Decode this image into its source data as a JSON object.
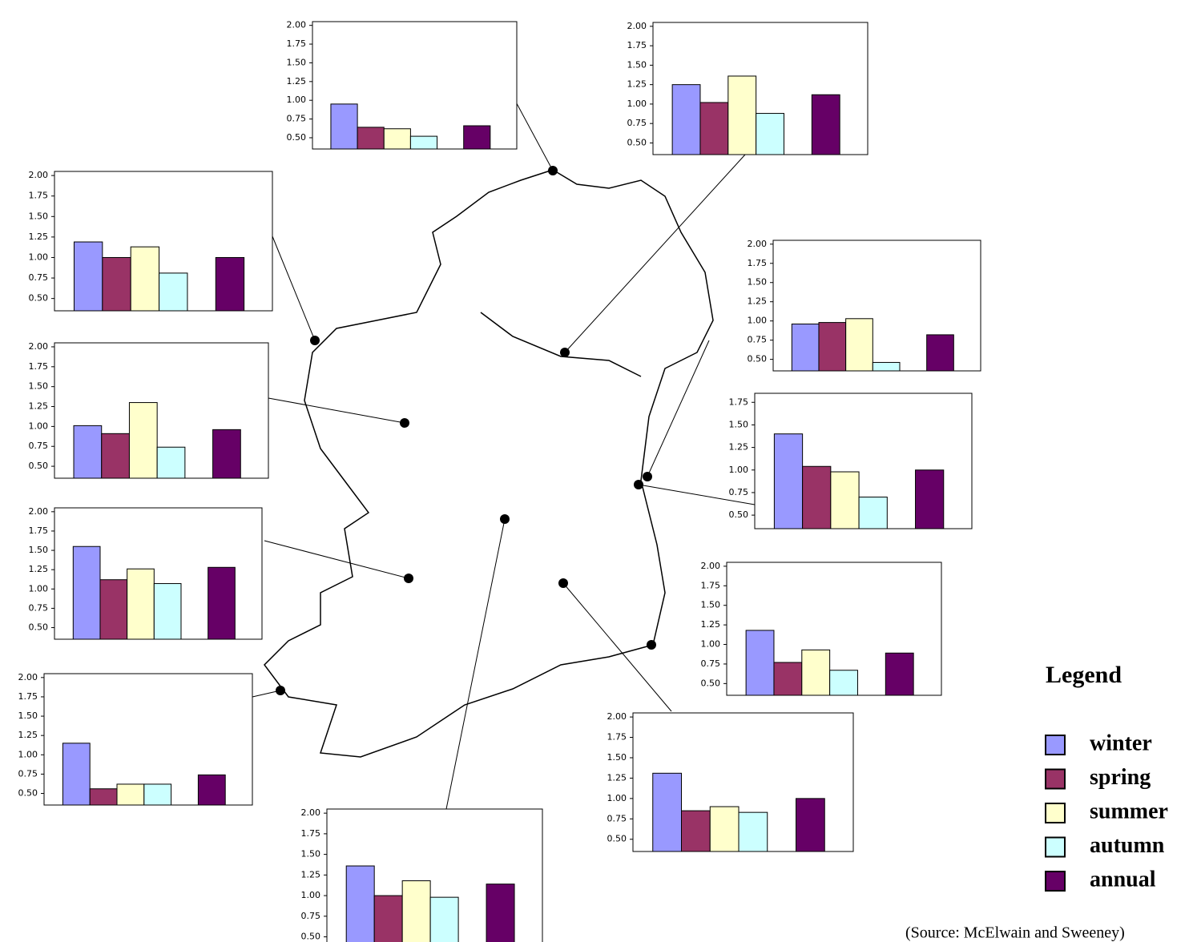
{
  "legend": {
    "title": "Legend",
    "items": [
      {
        "name": "winter",
        "color": "#9999ff"
      },
      {
        "name": "spring",
        "color": "#993366"
      },
      {
        "name": "summer",
        "color": "#ffffcc"
      },
      {
        "name": "autumn",
        "color": "#ccffff"
      },
      {
        "name": "annual",
        "color": "#660066"
      }
    ]
  },
  "source": "(Source: McElwain and Sweeney)",
  "chart_data": [
    {
      "type": "bar",
      "values": [
        0.95,
        0.64,
        0.62,
        0.52,
        0.66
      ],
      "ylim": [
        0.35,
        2.05
      ],
      "yticks": [
        {
          "value": 0.5,
          "label": "0.50"
        },
        {
          "value": 0.75,
          "label": "0.75"
        },
        {
          "value": 1,
          "label": "1.00"
        },
        {
          "value": 1.25,
          "label": "1.25"
        },
        {
          "value": 1.5,
          "label": "1.50"
        },
        {
          "value": 1.75,
          "label": "1.75"
        },
        {
          "value": 2,
          "label": "2.00"
        }
      ]
    },
    {
      "type": "bar",
      "values": [
        1.25,
        1.02,
        1.36,
        0.88,
        1.12
      ],
      "ylim": [
        0.35,
        2.05
      ],
      "yticks": [
        {
          "value": 0.5,
          "label": "0.50"
        },
        {
          "value": 0.75,
          "label": "0.75"
        },
        {
          "value": 1,
          "label": "1.00"
        },
        {
          "value": 1.25,
          "label": "1.25"
        },
        {
          "value": 1.5,
          "label": "1.50"
        },
        {
          "value": 1.75,
          "label": "1.75"
        },
        {
          "value": 2,
          "label": "2.00"
        }
      ]
    },
    {
      "type": "bar",
      "values": [
        1.19,
        1.0,
        1.13,
        0.81,
        1.0
      ],
      "ylim": [
        0.35,
        2.05
      ],
      "yticks": [
        {
          "value": 0.5,
          "label": "0.50"
        },
        {
          "value": 0.75,
          "label": "0.75"
        },
        {
          "value": 1,
          "label": "1.00"
        },
        {
          "value": 1.25,
          "label": "1.25"
        },
        {
          "value": 1.5,
          "label": "1.50"
        },
        {
          "value": 1.75,
          "label": "1.75"
        },
        {
          "value": 2,
          "label": "2.00"
        }
      ]
    },
    {
      "type": "bar",
      "values": [
        1.01,
        0.91,
        1.3,
        0.74,
        0.96
      ],
      "ylim": [
        0.35,
        2.05
      ],
      "yticks": [
        {
          "value": 0.5,
          "label": "0.50"
        },
        {
          "value": 0.75,
          "label": "0.75"
        },
        {
          "value": 1,
          "label": "1.00"
        },
        {
          "value": 1.25,
          "label": "1.25"
        },
        {
          "value": 1.5,
          "label": "1.50"
        },
        {
          "value": 1.75,
          "label": "1.75"
        },
        {
          "value": 2,
          "label": "2.00"
        }
      ]
    },
    {
      "type": "bar",
      "values": [
        1.55,
        1.12,
        1.26,
        1.07,
        1.28
      ],
      "ylim": [
        0.35,
        2.05
      ],
      "yticks": [
        {
          "value": 0.5,
          "label": "0.50"
        },
        {
          "value": 0.75,
          "label": "0.75"
        },
        {
          "value": 1,
          "label": "1.00"
        },
        {
          "value": 1.25,
          "label": "1.25"
        },
        {
          "value": 1.5,
          "label": "1.50"
        },
        {
          "value": 1.75,
          "label": "1.75"
        },
        {
          "value": 2,
          "label": "2.00"
        }
      ]
    },
    {
      "type": "bar",
      "values": [
        1.15,
        0.56,
        0.62,
        0.62,
        0.74
      ],
      "ylim": [
        0.35,
        2.05
      ],
      "yticks": [
        {
          "value": 0.5,
          "label": "0.50"
        },
        {
          "value": 0.75,
          "label": "0.75"
        },
        {
          "value": 1,
          "label": "1.00"
        },
        {
          "value": 1.25,
          "label": "1.25"
        },
        {
          "value": 1.5,
          "label": "1.50"
        },
        {
          "value": 1.75,
          "label": "1.75"
        },
        {
          "value": 2,
          "label": "2.00"
        }
      ]
    },
    {
      "type": "bar",
      "values": [
        1.36,
        1.0,
        1.18,
        0.98,
        1.14
      ],
      "ylim": [
        0.35,
        2.05
      ],
      "yticks": [
        {
          "value": 0.5,
          "label": "0.50"
        },
        {
          "value": 0.75,
          "label": "0.75"
        },
        {
          "value": 1,
          "label": "1.00"
        },
        {
          "value": 1.25,
          "label": "1.25"
        },
        {
          "value": 1.5,
          "label": "1.50"
        },
        {
          "value": 1.75,
          "label": "1.75"
        },
        {
          "value": 2,
          "label": "2.00"
        }
      ]
    },
    {
      "type": "bar",
      "values": [
        1.31,
        0.85,
        0.9,
        0.83,
        1.0
      ],
      "ylim": [
        0.35,
        2.05
      ],
      "yticks": [
        {
          "value": 0.5,
          "label": "0.50"
        },
        {
          "value": 0.75,
          "label": "0.75"
        },
        {
          "value": 1,
          "label": "1.00"
        },
        {
          "value": 1.25,
          "label": "1.25"
        },
        {
          "value": 1.5,
          "label": "1.50"
        },
        {
          "value": 1.75,
          "label": "1.75"
        },
        {
          "value": 2,
          "label": "2.00"
        }
      ]
    },
    {
      "type": "bar",
      "values": [
        1.18,
        0.77,
        0.93,
        0.67,
        0.89
      ],
      "ylim": [
        0.35,
        2.05
      ],
      "yticks": [
        {
          "value": 0.5,
          "label": "0.50"
        },
        {
          "value": 0.75,
          "label": "0.75"
        },
        {
          "value": 1,
          "label": "1.00"
        },
        {
          "value": 1.25,
          "label": "1.25"
        },
        {
          "value": 1.5,
          "label": "1.50"
        },
        {
          "value": 1.75,
          "label": "1.75"
        },
        {
          "value": 2,
          "label": "2.00"
        }
      ]
    },
    {
      "type": "bar",
      "values": [
        1.4,
        1.04,
        0.98,
        0.7,
        1.0
      ],
      "ylim": [
        0.35,
        1.85
      ],
      "yticks": [
        {
          "value": 0.5,
          "label": "0.50"
        },
        {
          "value": 0.75,
          "label": "0.75"
        },
        {
          "value": 1,
          "label": "1.00"
        },
        {
          "value": 1.25,
          "label": "1.25"
        },
        {
          "value": 1.5,
          "label": "1.50"
        },
        {
          "value": 1.75,
          "label": "1.75"
        }
      ]
    },
    {
      "type": "bar",
      "values": [
        0.96,
        0.98,
        1.03,
        0.46,
        0.82
      ],
      "ylim": [
        0.35,
        2.05
      ],
      "yticks": [
        {
          "value": 0.5,
          "label": "0.50"
        },
        {
          "value": 0.75,
          "label": "0.75"
        },
        {
          "value": 1,
          "label": "1.00"
        },
        {
          "value": 1.25,
          "label": "1.25"
        },
        {
          "value": 1.5,
          "label": "1.50"
        },
        {
          "value": 1.75,
          "label": "1.75"
        },
        {
          "value": 2,
          "label": "2.00"
        }
      ]
    }
  ]
}
